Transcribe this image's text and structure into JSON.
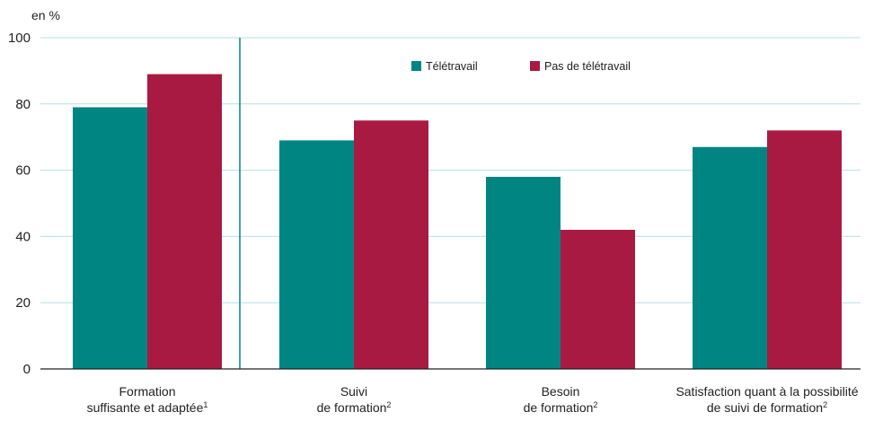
{
  "chart_data": {
    "type": "bar",
    "y_unit_label": "en %",
    "ylim": [
      0,
      100
    ],
    "yticks": [
      0,
      20,
      40,
      60,
      80,
      100
    ],
    "grid": true,
    "legend_position": "top-center",
    "categories": [
      {
        "lines": [
          {
            "text": "Formation",
            "sup": ""
          },
          {
            "text": "suffisante et adaptée",
            "sup": "1"
          }
        ]
      },
      {
        "lines": [
          {
            "text": "Suivi",
            "sup": ""
          },
          {
            "text": "de formation",
            "sup": "2"
          }
        ]
      },
      {
        "lines": [
          {
            "text": "Besoin",
            "sup": ""
          },
          {
            "text": "de formation",
            "sup": "2"
          }
        ]
      },
      {
        "lines": [
          {
            "text": "Satisfaction quant à la possibilité",
            "sup": ""
          },
          {
            "text": "de suivi  de formation",
            "sup": "2"
          }
        ]
      }
    ],
    "series": [
      {
        "name": "Télétravail",
        "color": "#008583",
        "values": [
          79,
          69,
          58,
          67
        ]
      },
      {
        "name": "Pas de télétravail",
        "color": "#a91a42",
        "values": [
          89,
          75,
          42,
          72
        ]
      }
    ],
    "separator_after_category": 0
  }
}
